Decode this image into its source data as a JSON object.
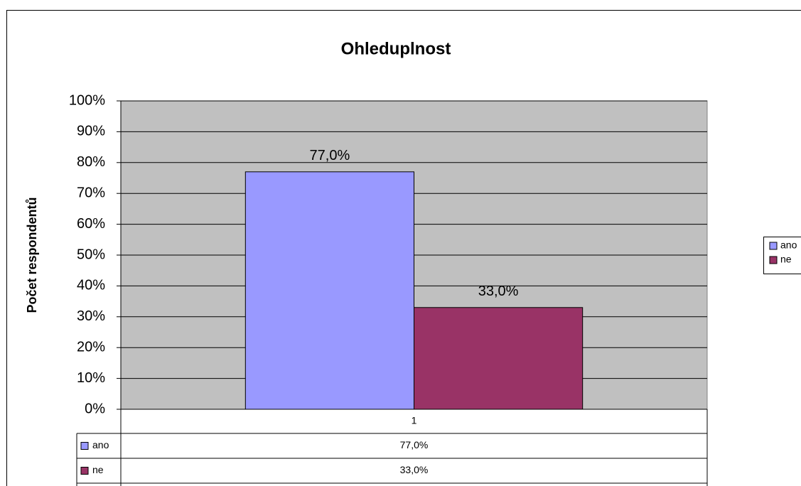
{
  "chart_data": {
    "type": "bar",
    "title": "Ohleduplnost",
    "y_label": "Počet respondentů",
    "categories": [
      "1"
    ],
    "series": [
      {
        "name": "ano",
        "color": "#9999ff",
        "values": [
          77
        ],
        "value_labels": [
          "77,0%"
        ]
      },
      {
        "name": "ne",
        "color": "#993366",
        "values": [
          33
        ],
        "value_labels": [
          "33,0%"
        ]
      }
    ],
    "ylim": [
      0,
      100
    ],
    "yticks": [
      {
        "value": 0,
        "label": "0%"
      },
      {
        "value": 10,
        "label": "10%"
      },
      {
        "value": 20,
        "label": "20%"
      },
      {
        "value": 30,
        "label": "30%"
      },
      {
        "value": 40,
        "label": "40%"
      },
      {
        "value": 50,
        "label": "50%"
      },
      {
        "value": 60,
        "label": "60%"
      },
      {
        "value": 70,
        "label": "70%"
      },
      {
        "value": 80,
        "label": "80%"
      },
      {
        "value": 90,
        "label": "90%"
      },
      {
        "value": 100,
        "label": "100%"
      }
    ],
    "grid": true,
    "legend": "right",
    "data_table": true
  }
}
